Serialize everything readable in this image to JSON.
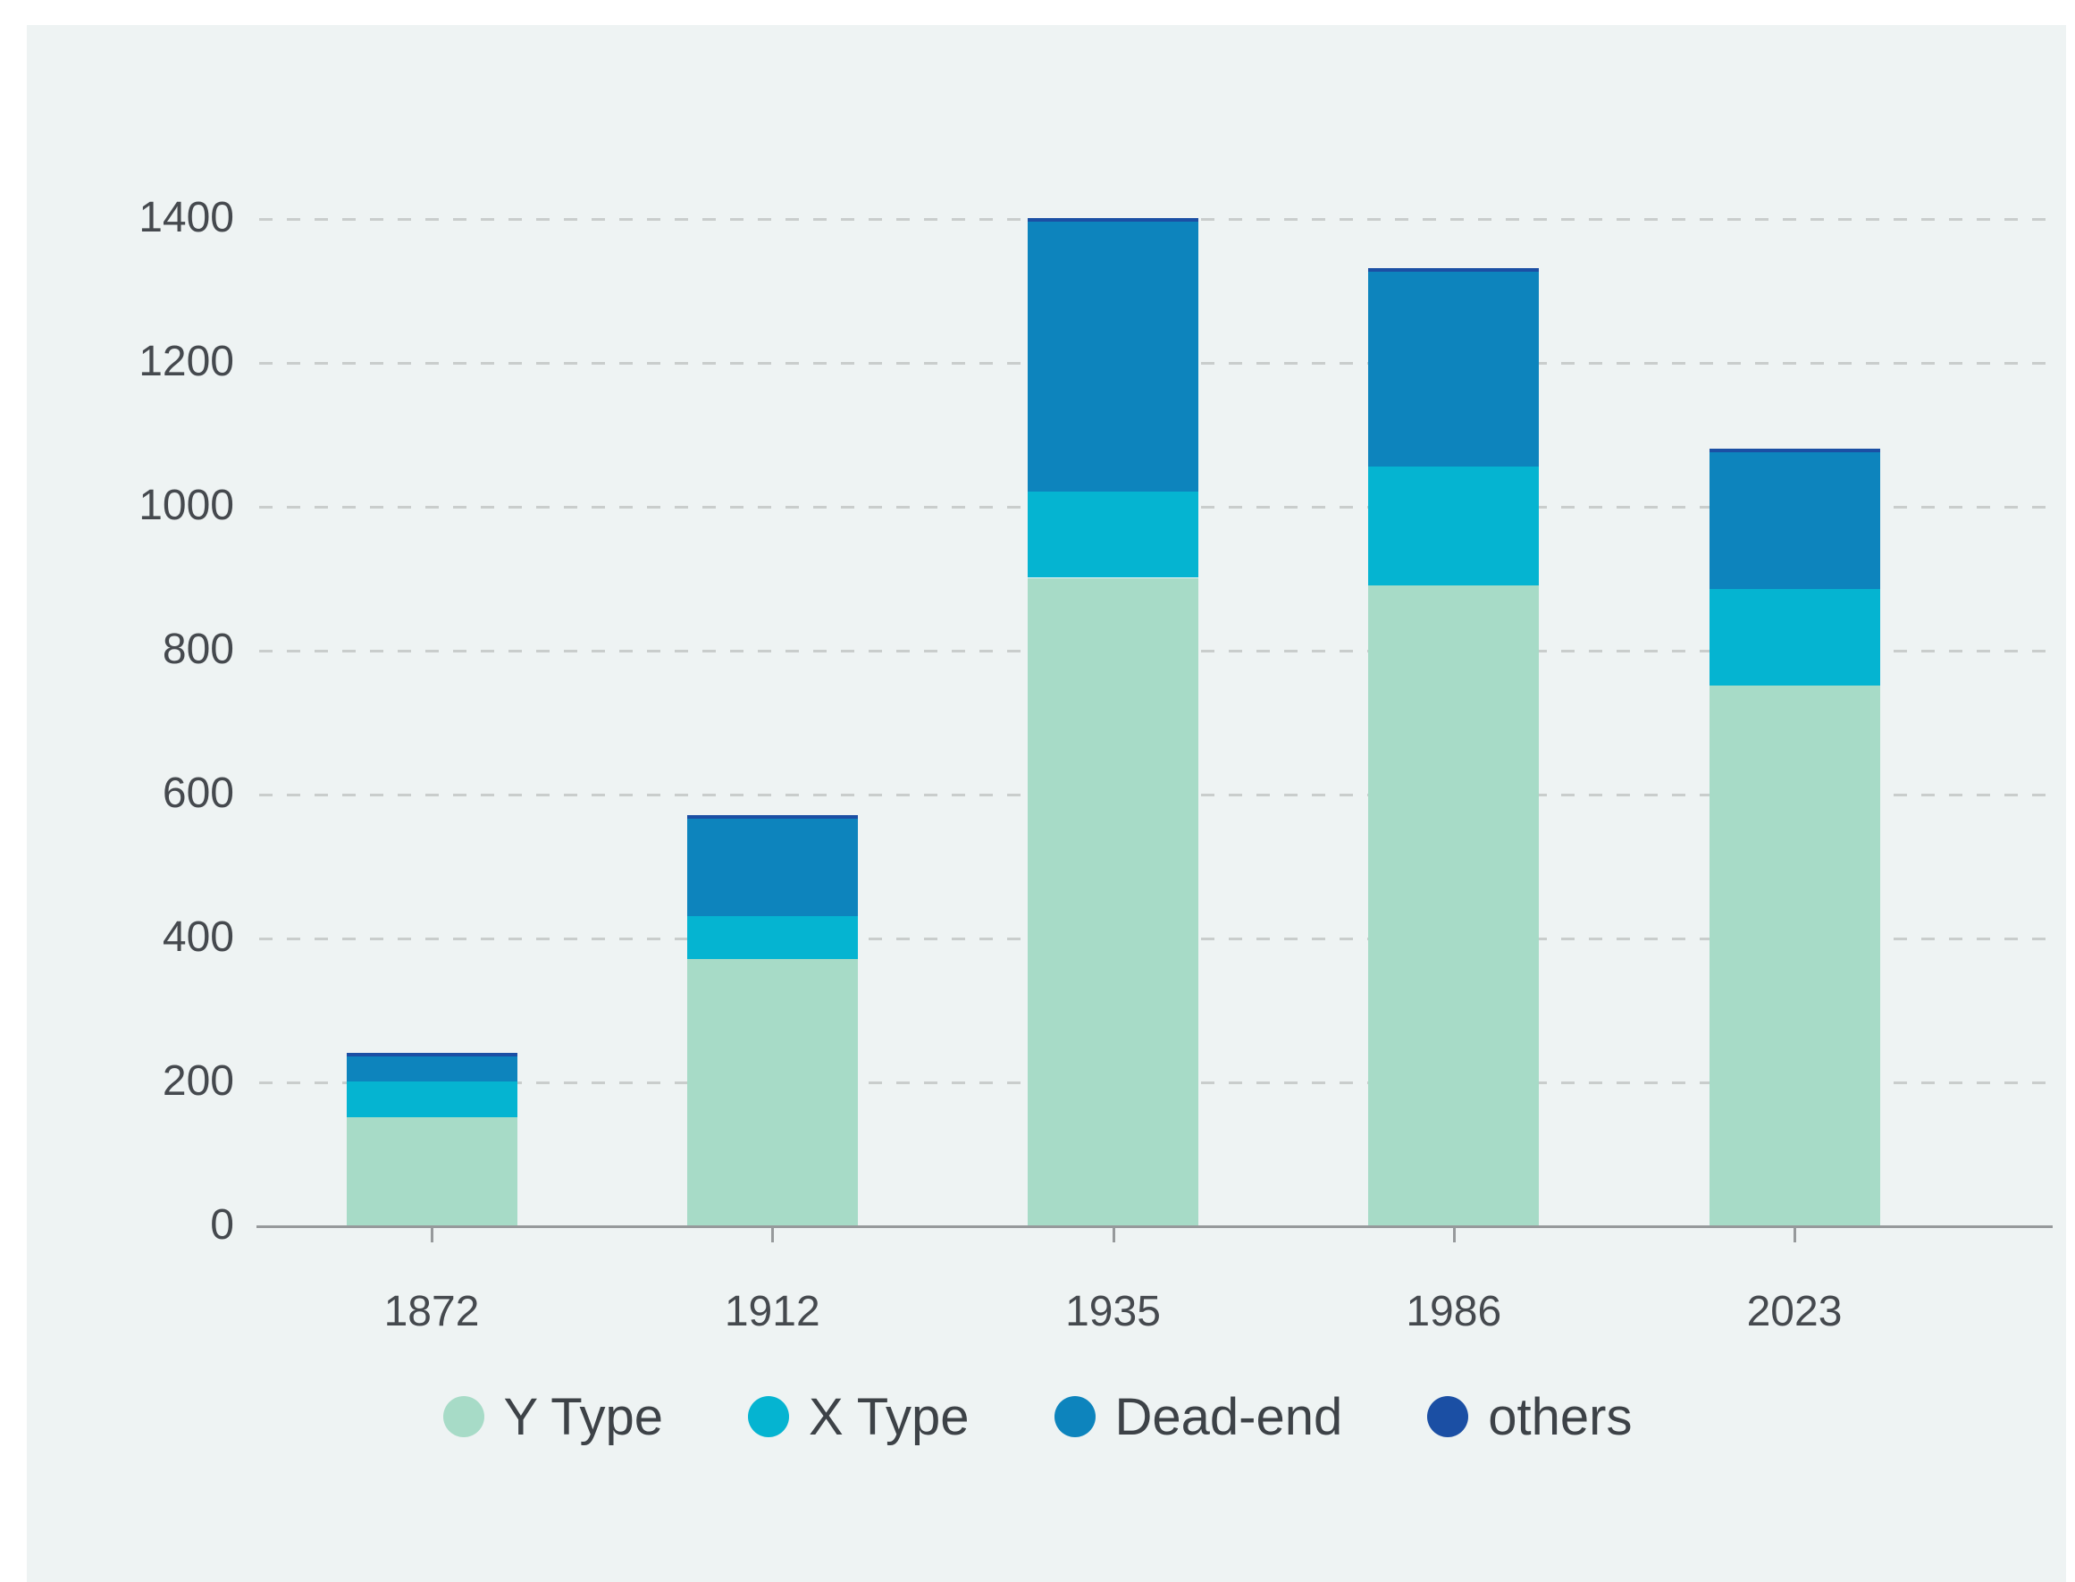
{
  "page": {
    "background_color": "#ffffff",
    "panel_color": "#eef3f3"
  },
  "chart_data": {
    "type": "bar",
    "stacked": true,
    "title": "",
    "xlabel": "",
    "ylabel": "",
    "categories": [
      "1872",
      "1912",
      "1935",
      "1986",
      "2023"
    ],
    "series": [
      {
        "name": "Y Type",
        "color": "#a7dbc7",
        "values": [
          150,
          370,
          900,
          890,
          750
        ]
      },
      {
        "name": "X Type",
        "color": "#05b4d1",
        "values": [
          50,
          60,
          120,
          165,
          135
        ]
      },
      {
        "name": "Dead-end",
        "color": "#0d84bd",
        "values": [
          35,
          135,
          375,
          270,
          190
        ]
      },
      {
        "name": "others",
        "color": "#1b4fa4",
        "values": [
          5,
          5,
          5,
          5,
          5
        ]
      }
    ],
    "stack_totals": [
      240,
      570,
      1400,
      1330,
      1080
    ],
    "ylim": [
      0,
      1400
    ],
    "yticks": [
      0,
      200,
      400,
      600,
      800,
      1000,
      1200,
      1400
    ],
    "grid": "horizontal dashed",
    "legend_position": "bottom"
  },
  "style": {
    "grid_color": "#c9cdcc",
    "axis_line_color": "#96999b",
    "tick_label_color": "#45494e",
    "legend_text_color": "#3d4247"
  }
}
